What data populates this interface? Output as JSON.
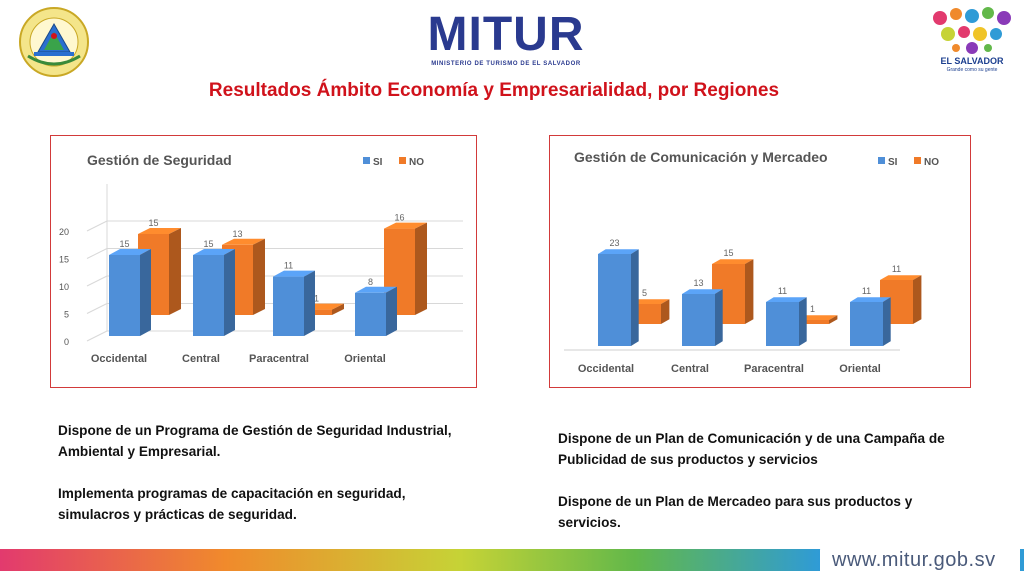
{
  "header": {
    "brand": "MITUR",
    "brand_subtitle": "MINISTERIO DE TURISMO DE EL SALVADOR",
    "right_logo_text": "EL SALVADOR",
    "right_logo_subtitle": "Grande como su gente",
    "seal_text": "REPUBLICA DE EL SALVADOR EN LA AMERICA CENTRAL"
  },
  "title": "Resultados Ámbito Economía y Empresarialidad, por Regiones",
  "chart_data": [
    {
      "type": "bar",
      "title": "Gestión de Seguridad",
      "categories": [
        "Occidental",
        "Central",
        "Paracentral",
        "Oriental"
      ],
      "series": [
        {
          "name": "SI",
          "values": [
            15,
            15,
            11,
            8
          ],
          "color": "#4f8fd8"
        },
        {
          "name": "NO",
          "values": [
            15,
            13,
            1,
            16
          ],
          "color": "#f07a28"
        }
      ],
      "yticks": [
        "0",
        "5",
        "10",
        "15",
        "20"
      ],
      "ylim": [
        0,
        20
      ],
      "legend": "top-right",
      "grid": true
    },
    {
      "type": "bar",
      "title": "Gestión de Comunicación y Mercadeo",
      "categories": [
        "Occidental",
        "Central",
        "Paracentral",
        "Oriental"
      ],
      "series": [
        {
          "name": "SI",
          "values": [
            23,
            13,
            11,
            11
          ],
          "color": "#4f8fd8"
        },
        {
          "name": "NO",
          "values": [
            5,
            15,
            1,
            11
          ],
          "color": "#f07a28"
        }
      ],
      "yticks": [],
      "ylim": [
        0,
        25
      ],
      "legend": "top-right",
      "grid": false
    }
  ],
  "left_text": [
    "Dispone de un Programa de Gestión de Seguridad Industrial, Ambiental y Empresarial.",
    "Implementa programas de capacitación en seguridad, simulacros y prácticas de seguridad."
  ],
  "right_text": [
    "Dispone de un Plan de Comunicación y de una Campaña de Publicidad de sus productos y servicios",
    "Dispone de un Plan de Mercadeo para sus productos y servicios."
  ],
  "footer": {
    "url": "www.mitur.gob.sv"
  }
}
